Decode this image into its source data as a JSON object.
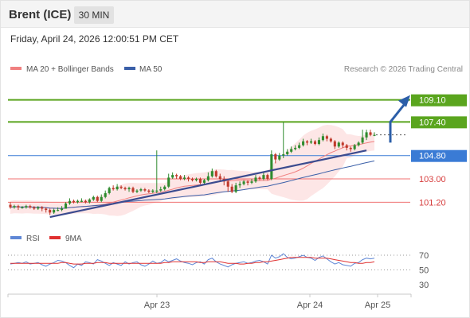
{
  "header": {
    "instrument": "Brent (ICE)",
    "timeframe": "30 MIN",
    "datetime": "Friday, April 24, 2026 12:00:51 PM CET"
  },
  "legend": {
    "ma20_label": "MA 20 + Bollinger Bands",
    "ma50_label": "MA 50",
    "credit": "Research © 2026 Trading Central",
    "rsi_label": "RSI",
    "rsi_ma_label": "9MA"
  },
  "colors": {
    "candle_up": "#2e8b2e",
    "candle_down": "#c0392b",
    "ma20": "#f08080",
    "bollinger_fill": "#fde2e2",
    "ma50": "#3a5fa8",
    "trendline": "#3b4b8f",
    "resistance": "#5aa51e",
    "support": "#f07070",
    "current": "#3a7bd5",
    "projection": "#2b5ea8",
    "rsi": "#5f87d6",
    "rsi_ma": "#e03030"
  },
  "chart_data": [
    {
      "type": "candlestick",
      "ylim": [
        99.5,
        110.8
      ],
      "x_labels": [
        "Apr 23",
        "Apr 24",
        "Apr 25"
      ],
      "levels": [
        {
          "value": 109.1,
          "label": "109.10",
          "kind": "resistance"
        },
        {
          "value": 107.4,
          "label": "107.40",
          "kind": "resistance"
        },
        {
          "value": 104.8,
          "label": "104.80",
          "kind": "current"
        },
        {
          "value": 103.0,
          "label": "103.00",
          "kind": "support"
        },
        {
          "value": 101.2,
          "label": "101.20",
          "kind": "support"
        }
      ],
      "projection": [
        105.5,
        107.4,
        109.1
      ],
      "candles": [
        [
          101.0,
          100.8,
          101.2,
          100.7
        ],
        [
          100.8,
          100.9,
          101.0,
          100.7
        ],
        [
          100.9,
          100.8,
          101.0,
          100.6
        ],
        [
          100.8,
          100.8,
          100.9,
          100.7
        ],
        [
          100.8,
          100.9,
          101.0,
          100.7
        ],
        [
          100.9,
          100.8,
          101.0,
          100.7
        ],
        [
          100.8,
          100.7,
          100.9,
          100.6
        ],
        [
          100.7,
          100.8,
          100.9,
          100.6
        ],
        [
          100.8,
          100.7,
          100.9,
          100.5
        ],
        [
          100.7,
          100.6,
          100.8,
          100.4
        ],
        [
          100.6,
          100.4,
          100.7,
          100.2
        ],
        [
          100.4,
          100.6,
          100.7,
          100.3
        ],
        [
          100.6,
          100.6,
          100.8,
          100.5
        ],
        [
          100.6,
          100.7,
          100.9,
          100.5
        ],
        [
          100.7,
          101.1,
          101.2,
          100.7
        ],
        [
          101.1,
          101.3,
          101.5,
          101.0
        ],
        [
          101.3,
          101.2,
          101.4,
          101.1
        ],
        [
          101.2,
          101.3,
          101.4,
          101.1
        ],
        [
          101.3,
          101.3,
          101.5,
          101.2
        ],
        [
          101.3,
          101.2,
          101.4,
          101.1
        ],
        [
          101.2,
          101.4,
          101.5,
          101.1
        ],
        [
          101.4,
          101.6,
          101.7,
          101.3
        ],
        [
          101.6,
          101.3,
          101.7,
          101.2
        ],
        [
          101.3,
          101.6,
          101.8,
          101.2
        ],
        [
          101.6,
          101.9,
          102.1,
          101.5
        ],
        [
          101.9,
          102.3,
          102.4,
          101.8
        ],
        [
          102.3,
          102.2,
          102.5,
          102.1
        ],
        [
          102.2,
          102.4,
          102.6,
          102.1
        ],
        [
          102.4,
          102.3,
          102.5,
          102.2
        ],
        [
          102.3,
          102.2,
          102.4,
          102.1
        ],
        [
          102.2,
          102.3,
          102.4,
          102.0
        ],
        [
          102.3,
          102.0,
          102.4,
          101.9
        ],
        [
          102.0,
          102.1,
          102.2,
          101.9
        ],
        [
          102.1,
          102.2,
          102.3,
          102.0
        ],
        [
          102.2,
          102.1,
          102.3,
          102.0
        ],
        [
          102.1,
          102.0,
          102.2,
          101.9
        ],
        [
          102.0,
          102.1,
          102.2,
          101.9
        ],
        [
          102.1,
          102.1,
          105.2,
          101.9
        ],
        [
          102.1,
          102.2,
          102.4,
          102.0
        ],
        [
          102.2,
          102.4,
          102.5,
          102.1
        ],
        [
          102.4,
          103.1,
          103.4,
          102.3
        ],
        [
          103.1,
          103.3,
          103.5,
          103.0
        ],
        [
          103.3,
          103.2,
          103.4,
          103.0
        ],
        [
          103.2,
          103.0,
          103.3,
          102.9
        ],
        [
          103.0,
          103.1,
          103.3,
          102.9
        ],
        [
          103.1,
          103.0,
          103.2,
          102.8
        ],
        [
          103.0,
          102.9,
          103.1,
          102.8
        ],
        [
          102.9,
          103.0,
          103.1,
          102.8
        ],
        [
          103.0,
          102.7,
          103.1,
          102.6
        ],
        [
          102.7,
          102.9,
          103.0,
          102.6
        ],
        [
          102.9,
          103.2,
          103.5,
          102.8
        ],
        [
          103.2,
          103.6,
          103.8,
          103.1
        ],
        [
          103.6,
          103.2,
          103.7,
          103.1
        ],
        [
          103.2,
          103.0,
          103.4,
          102.8
        ],
        [
          103.0,
          102.8,
          103.2,
          102.5
        ],
        [
          102.8,
          102.4,
          102.9,
          102.0
        ],
        [
          102.4,
          102.0,
          102.6,
          101.9
        ],
        [
          102.0,
          102.5,
          102.7,
          101.9
        ],
        [
          102.5,
          102.6,
          102.8,
          102.3
        ],
        [
          102.6,
          102.8,
          102.9,
          102.5
        ],
        [
          102.8,
          102.7,
          102.9,
          102.5
        ],
        [
          102.7,
          102.8,
          103.0,
          102.6
        ],
        [
          102.8,
          103.1,
          103.3,
          102.7
        ],
        [
          103.1,
          103.0,
          103.2,
          102.9
        ],
        [
          103.0,
          103.3,
          103.5,
          102.9
        ],
        [
          103.3,
          103.0,
          103.4,
          102.9
        ],
        [
          103.0,
          104.9,
          105.2,
          102.9
        ],
        [
          104.9,
          104.5,
          105.0,
          104.2
        ],
        [
          104.5,
          104.8,
          105.0,
          104.4
        ],
        [
          104.8,
          104.9,
          107.4,
          104.6
        ],
        [
          104.9,
          105.1,
          105.3,
          104.8
        ],
        [
          105.1,
          105.3,
          105.5,
          105.0
        ],
        [
          105.3,
          105.4,
          105.6,
          105.2
        ],
        [
          105.4,
          105.6,
          105.8,
          105.3
        ],
        [
          105.6,
          105.9,
          106.1,
          105.5
        ],
        [
          105.9,
          105.8,
          106.0,
          105.6
        ],
        [
          105.8,
          105.9,
          106.1,
          105.7
        ],
        [
          105.9,
          105.7,
          106.0,
          105.6
        ],
        [
          105.7,
          106.0,
          106.2,
          105.6
        ],
        [
          106.0,
          106.3,
          106.5,
          105.9
        ],
        [
          106.3,
          106.1,
          106.4,
          105.9
        ],
        [
          106.1,
          105.9,
          106.2,
          105.8
        ],
        [
          105.9,
          105.5,
          106.0,
          105.3
        ],
        [
          105.5,
          105.8,
          105.9,
          105.4
        ],
        [
          105.8,
          105.6,
          105.9,
          105.4
        ],
        [
          105.6,
          105.4,
          105.7,
          105.2
        ],
        [
          105.4,
          105.3,
          105.5,
          105.1
        ],
        [
          105.3,
          105.6,
          105.7,
          105.2
        ],
        [
          105.6,
          105.8,
          105.9,
          105.5
        ],
        [
          105.8,
          106.2,
          106.8,
          105.7
        ],
        [
          106.2,
          106.6,
          106.8,
          106.0
        ],
        [
          106.6,
          106.4,
          106.8,
          106.3
        ],
        [
          106.4,
          106.4,
          106.6,
          106.3
        ]
      ]
    },
    {
      "type": "line",
      "name": "RSI",
      "ylim": [
        20,
        80
      ],
      "tick_labels": [
        70,
        50,
        30
      ],
      "series": [
        {
          "name": "RSI",
          "values": [
            58,
            59,
            60,
            59,
            61,
            58,
            59,
            60,
            57,
            55,
            58,
            60,
            63,
            62,
            60,
            56,
            53,
            58,
            56,
            61,
            60,
            58,
            64,
            62,
            59,
            56,
            60,
            58,
            56,
            61,
            58,
            60,
            61,
            57,
            55,
            58,
            62,
            59,
            60,
            64,
            61,
            63,
            65,
            62,
            60,
            59,
            57,
            60,
            61,
            58,
            64,
            66,
            61,
            58,
            56,
            54,
            57,
            59,
            60,
            61,
            59,
            60,
            62,
            63,
            61,
            58,
            70,
            66,
            68,
            72,
            67,
            65,
            66,
            68,
            70,
            67,
            66,
            63,
            67,
            69,
            65,
            61,
            58,
            60,
            57,
            56,
            55,
            59,
            60,
            64,
            66,
            65,
            66
          ]
        },
        {
          "name": "9MA",
          "values": [
            59,
            59,
            59,
            59,
            59,
            59,
            59,
            59,
            59,
            59,
            59,
            59,
            59,
            60,
            60,
            59,
            58,
            58,
            58,
            59,
            59,
            59,
            60,
            60,
            60,
            59,
            59,
            59,
            59,
            59,
            59,
            59,
            59,
            59,
            59,
            59,
            59,
            59,
            59,
            60,
            60,
            61,
            61,
            61,
            61,
            61,
            61,
            61,
            60,
            60,
            61,
            61,
            61,
            61,
            60,
            59,
            59,
            59,
            58,
            58,
            59,
            59,
            60,
            60,
            61,
            61,
            62,
            63,
            64,
            65,
            66,
            67,
            67,
            67,
            67,
            67,
            67,
            66,
            66,
            66,
            66,
            65,
            64,
            63,
            62,
            61,
            60,
            60,
            59,
            59,
            60,
            60,
            61
          ]
        }
      ]
    }
  ]
}
